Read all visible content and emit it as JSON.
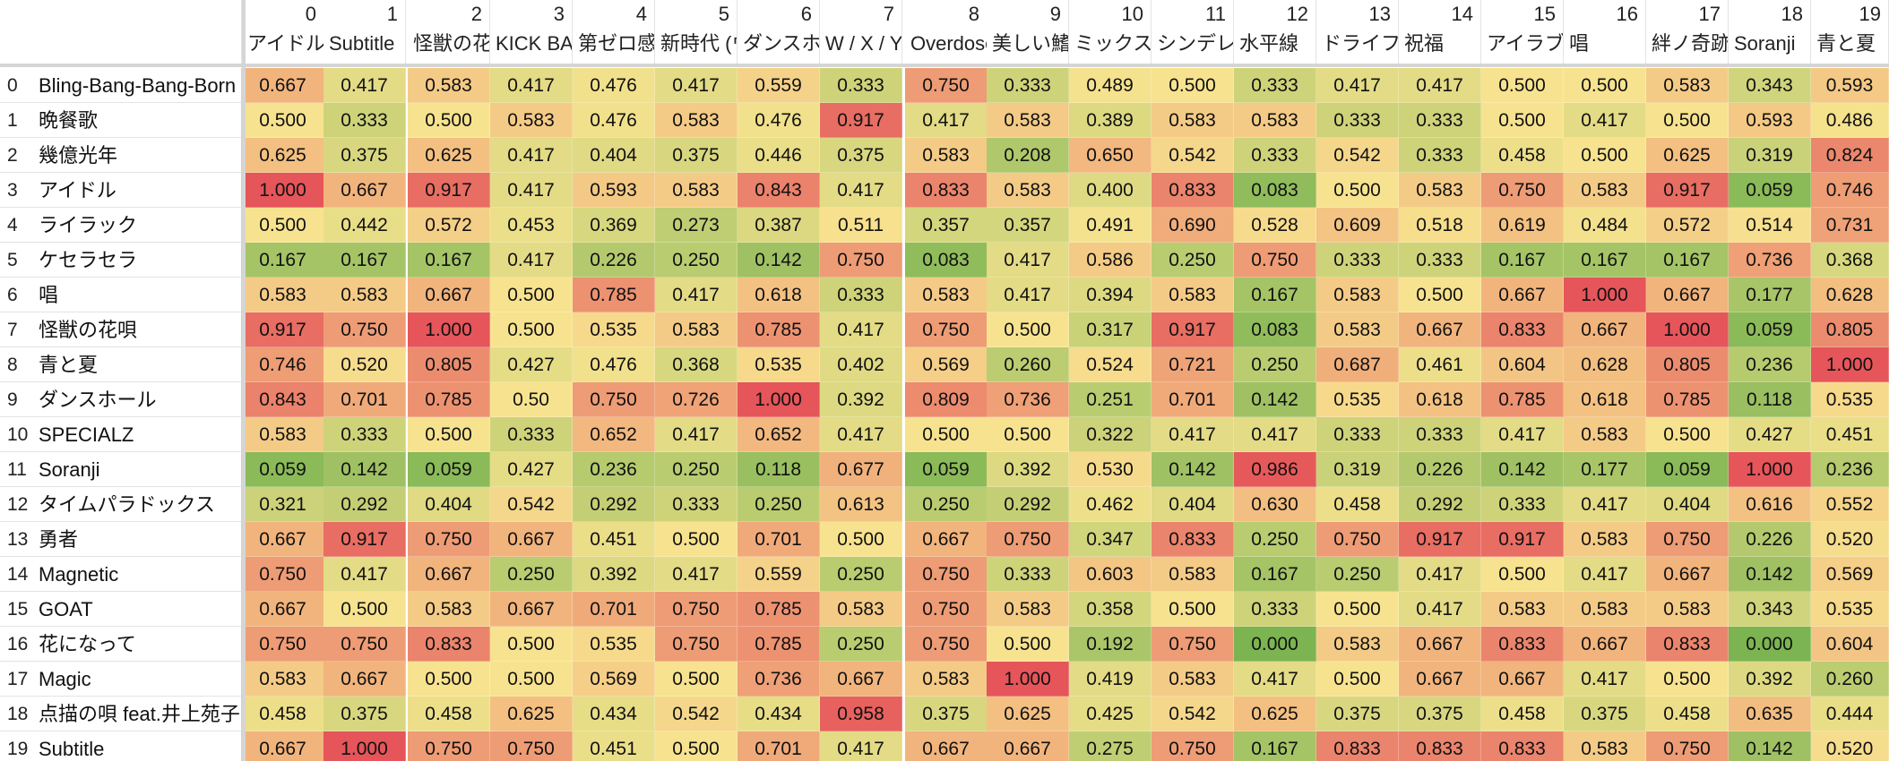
{
  "columns": [
    {
      "index": "0",
      "header": "アイドル"
    },
    {
      "index": "1",
      "header": "Subtitle"
    },
    {
      "index": "2",
      "header": "怪獣の花唄"
    },
    {
      "index": "3",
      "header": "KICK BACK"
    },
    {
      "index": "4",
      "header": "第ゼロ感"
    },
    {
      "index": "5",
      "header": "新時代 (ウタ from ONE PIECE FILM RED)"
    },
    {
      "index": "6",
      "header": "ダンスホール"
    },
    {
      "index": "7",
      "header": "W / X / Y"
    },
    {
      "index": "8",
      "header": "Overdose"
    },
    {
      "index": "9",
      "header": "美しい鰭"
    },
    {
      "index": "10",
      "header": "ミックスナッツ"
    },
    {
      "index": "11",
      "header": "シンデレラボーイ"
    },
    {
      "index": "12",
      "header": "水平線"
    },
    {
      "index": "13",
      "header": "ドライフラワー"
    },
    {
      "index": "14",
      "header": "祝福"
    },
    {
      "index": "15",
      "header": "アイラブユー"
    },
    {
      "index": "16",
      "header": "唱"
    },
    {
      "index": "17",
      "header": "絆ノ奇跡"
    },
    {
      "index": "18",
      "header": "Soranji"
    },
    {
      "index": "19",
      "header": "青と夏"
    }
  ],
  "rows": [
    {
      "index": "0",
      "name": "Bling-Bang-Bang-Born",
      "values": [
        "0.667",
        "0.417",
        "0.583",
        "0.417",
        "0.476",
        "0.417",
        "0.559",
        "0.333",
        "0.750",
        "0.333",
        "0.489",
        "0.500",
        "0.333",
        "0.417",
        "0.417",
        "0.500",
        "0.500",
        "0.583",
        "0.343",
        "0.593"
      ]
    },
    {
      "index": "1",
      "name": "晩餐歌",
      "values": [
        "0.500",
        "0.333",
        "0.500",
        "0.583",
        "0.476",
        "0.583",
        "0.476",
        "0.917",
        "0.417",
        "0.583",
        "0.389",
        "0.583",
        "0.583",
        "0.333",
        "0.333",
        "0.500",
        "0.417",
        "0.500",
        "0.593",
        "0.486"
      ]
    },
    {
      "index": "2",
      "name": "幾億光年",
      "values": [
        "0.625",
        "0.375",
        "0.625",
        "0.417",
        "0.404",
        "0.375",
        "0.446",
        "0.375",
        "0.583",
        "0.208",
        "0.650",
        "0.542",
        "0.333",
        "0.542",
        "0.333",
        "0.458",
        "0.500",
        "0.625",
        "0.319",
        "0.824"
      ]
    },
    {
      "index": "3",
      "name": "アイドル",
      "values": [
        "1.000",
        "0.667",
        "0.917",
        "0.417",
        "0.593",
        "0.583",
        "0.843",
        "0.417",
        "0.833",
        "0.583",
        "0.400",
        "0.833",
        "0.083",
        "0.500",
        "0.583",
        "0.750",
        "0.583",
        "0.917",
        "0.059",
        "0.746"
      ]
    },
    {
      "index": "4",
      "name": "ライラック",
      "values": [
        "0.500",
        "0.442",
        "0.572",
        "0.453",
        "0.369",
        "0.273",
        "0.387",
        "0.511",
        "0.357",
        "0.357",
        "0.491",
        "0.690",
        "0.528",
        "0.609",
        "0.518",
        "0.619",
        "0.484",
        "0.572",
        "0.514",
        "0.731"
      ]
    },
    {
      "index": "5",
      "name": "ケセラセラ",
      "values": [
        "0.167",
        "0.167",
        "0.167",
        "0.417",
        "0.226",
        "0.250",
        "0.142",
        "0.750",
        "0.083",
        "0.417",
        "0.586",
        "0.250",
        "0.750",
        "0.333",
        "0.333",
        "0.167",
        "0.167",
        "0.167",
        "0.736",
        "0.368"
      ]
    },
    {
      "index": "6",
      "name": "唱",
      "values": [
        "0.583",
        "0.583",
        "0.667",
        "0.500",
        "0.785",
        "0.417",
        "0.618",
        "0.333",
        "0.583",
        "0.417",
        "0.394",
        "0.583",
        "0.167",
        "0.583",
        "0.500",
        "0.667",
        "1.000",
        "0.667",
        "0.177",
        "0.628"
      ]
    },
    {
      "index": "7",
      "name": "怪獣の花唄",
      "values": [
        "0.917",
        "0.750",
        "1.000",
        "0.500",
        "0.535",
        "0.583",
        "0.785",
        "0.417",
        "0.750",
        "0.500",
        "0.317",
        "0.917",
        "0.083",
        "0.583",
        "0.667",
        "0.833",
        "0.667",
        "1.000",
        "0.059",
        "0.805"
      ]
    },
    {
      "index": "8",
      "name": "青と夏",
      "values": [
        "0.746",
        "0.520",
        "0.805",
        "0.427",
        "0.476",
        "0.368",
        "0.535",
        "0.402",
        "0.569",
        "0.260",
        "0.524",
        "0.721",
        "0.250",
        "0.687",
        "0.461",
        "0.604",
        "0.628",
        "0.805",
        "0.236",
        "1.000"
      ]
    },
    {
      "index": "9",
      "name": "ダンスホール",
      "values": [
        "0.843",
        "0.701",
        "0.785",
        "0.50",
        "0.750",
        "0.726",
        "1.000",
        "0.392",
        "0.809",
        "0.736",
        "0.251",
        "0.701",
        "0.142",
        "0.535",
        "0.618",
        "0.785",
        "0.618",
        "0.785",
        "0.118",
        "0.535"
      ]
    },
    {
      "index": "10",
      "name": "SPECIALZ",
      "values": [
        "0.583",
        "0.333",
        "0.500",
        "0.333",
        "0.652",
        "0.417",
        "0.652",
        "0.417",
        "0.500",
        "0.500",
        "0.322",
        "0.417",
        "0.417",
        "0.333",
        "0.333",
        "0.417",
        "0.583",
        "0.500",
        "0.427",
        "0.451"
      ]
    },
    {
      "index": "11",
      "name": "Soranji",
      "values": [
        "0.059",
        "0.142",
        "0.059",
        "0.427",
        "0.236",
        "0.250",
        "0.118",
        "0.677",
        "0.059",
        "0.392",
        "0.530",
        "0.142",
        "0.986",
        "0.319",
        "0.226",
        "0.142",
        "0.177",
        "0.059",
        "1.000",
        "0.236"
      ]
    },
    {
      "index": "12",
      "name": "タイムパラドックス",
      "values": [
        "0.321",
        "0.292",
        "0.404",
        "0.542",
        "0.292",
        "0.333",
        "0.250",
        "0.613",
        "0.250",
        "0.292",
        "0.462",
        "0.404",
        "0.630",
        "0.458",
        "0.292",
        "0.333",
        "0.417",
        "0.404",
        "0.616",
        "0.552"
      ]
    },
    {
      "index": "13",
      "name": "勇者",
      "values": [
        "0.667",
        "0.917",
        "0.750",
        "0.667",
        "0.451",
        "0.500",
        "0.701",
        "0.500",
        "0.667",
        "0.750",
        "0.347",
        "0.833",
        "0.250",
        "0.750",
        "0.917",
        "0.917",
        "0.583",
        "0.750",
        "0.226",
        "0.520"
      ]
    },
    {
      "index": "14",
      "name": "Magnetic",
      "values": [
        "0.750",
        "0.417",
        "0.667",
        "0.250",
        "0.392",
        "0.417",
        "0.559",
        "0.250",
        "0.750",
        "0.333",
        "0.603",
        "0.583",
        "0.167",
        "0.250",
        "0.417",
        "0.500",
        "0.417",
        "0.667",
        "0.142",
        "0.569"
      ]
    },
    {
      "index": "15",
      "name": "GOAT",
      "values": [
        "0.667",
        "0.500",
        "0.583",
        "0.667",
        "0.701",
        "0.750",
        "0.785",
        "0.583",
        "0.750",
        "0.583",
        "0.358",
        "0.500",
        "0.333",
        "0.500",
        "0.417",
        "0.583",
        "0.583",
        "0.583",
        "0.343",
        "0.535"
      ]
    },
    {
      "index": "16",
      "name": "花になって",
      "values": [
        "0.750",
        "0.750",
        "0.833",
        "0.500",
        "0.535",
        "0.750",
        "0.785",
        "0.250",
        "0.750",
        "0.500",
        "0.192",
        "0.750",
        "0.000",
        "0.583",
        "0.667",
        "0.833",
        "0.667",
        "0.833",
        "0.000",
        "0.604"
      ]
    },
    {
      "index": "17",
      "name": "Magic",
      "values": [
        "0.583",
        "0.667",
        "0.500",
        "0.500",
        "0.569",
        "0.500",
        "0.736",
        "0.667",
        "0.583",
        "1.000",
        "0.419",
        "0.583",
        "0.417",
        "0.500",
        "0.667",
        "0.667",
        "0.417",
        "0.500",
        "0.392",
        "0.260"
      ]
    },
    {
      "index": "18",
      "name": "点描の唄 feat.井上苑子",
      "values": [
        "0.458",
        "0.375",
        "0.458",
        "0.625",
        "0.434",
        "0.542",
        "0.434",
        "0.958",
        "0.375",
        "0.625",
        "0.425",
        "0.542",
        "0.625",
        "0.375",
        "0.375",
        "0.458",
        "0.375",
        "0.458",
        "0.635",
        "0.444"
      ]
    },
    {
      "index": "19",
      "name": "Subtitle",
      "values": [
        "0.667",
        "1.000",
        "0.750",
        "0.750",
        "0.451",
        "0.500",
        "0.701",
        "0.417",
        "0.667",
        "0.667",
        "0.275",
        "0.750",
        "0.167",
        "0.833",
        "0.833",
        "0.833",
        "0.583",
        "0.750",
        "0.142",
        "0.520"
      ]
    }
  ],
  "colors": {
    "low": "#7cb451",
    "mid": "#f7e38f",
    "high": "#e5555a",
    "header_bg": "#ffffff",
    "grid_line": "#e2e3e3"
  }
}
